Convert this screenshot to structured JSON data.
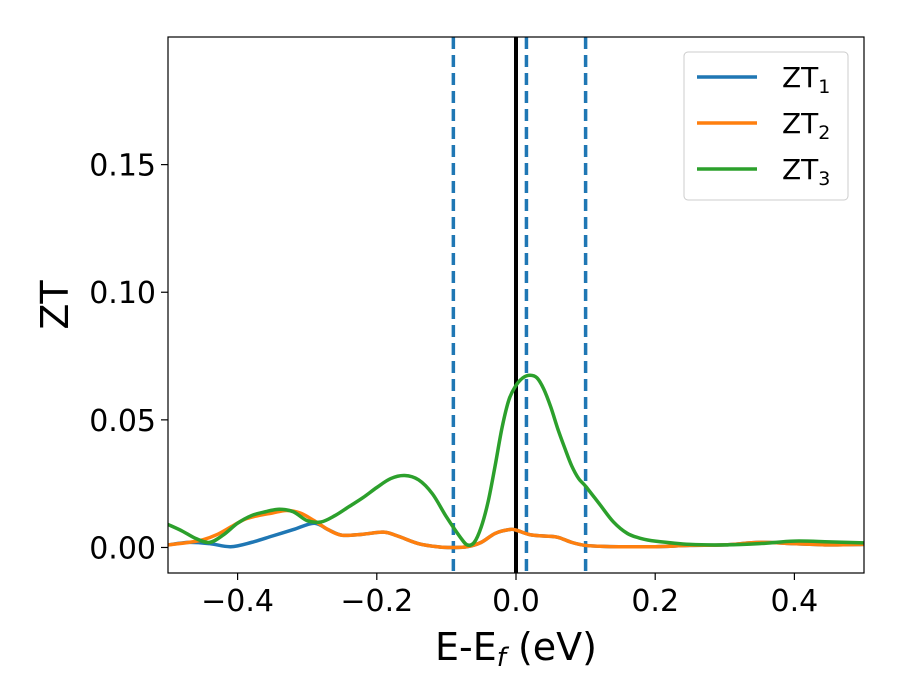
{
  "chart_data": {
    "type": "line",
    "xlabel_main": "E-E",
    "xlabel_sub": "f",
    "xlabel_unit": " (eV)",
    "ylabel": "ZT",
    "xlim": [
      -0.5,
      0.5
    ],
    "ylim": [
      -0.01,
      0.2
    ],
    "x_ticks": [
      -0.4,
      -0.2,
      0.0,
      0.2,
      0.4
    ],
    "x_tick_labels": [
      "−0.4",
      "−0.2",
      "0.0",
      "0.2",
      "0.4"
    ],
    "y_ticks": [
      0.0,
      0.05,
      0.1,
      0.15
    ],
    "y_tick_labels": [
      "0.00",
      "0.05",
      "0.10",
      "0.15"
    ],
    "grid": false,
    "legend_position": "top-right",
    "series": [
      {
        "name": "ZT",
        "sub": "1",
        "color": "#1f77b4",
        "x": [
          -0.5,
          -0.47,
          -0.44,
          -0.41,
          -0.38,
          -0.35,
          -0.32,
          -0.29,
          -0.27,
          -0.25,
          -0.22,
          -0.19,
          -0.17,
          -0.14,
          -0.11,
          -0.09,
          -0.07,
          -0.05,
          -0.03,
          -0.01,
          0.0,
          0.02,
          0.04,
          0.06,
          0.08,
          0.1,
          0.13,
          0.16,
          0.2,
          0.25,
          0.3,
          0.35,
          0.4,
          0.45,
          0.5
        ],
        "y": [
          0.001,
          0.002,
          0.0015,
          0.0003,
          0.002,
          0.0045,
          0.007,
          0.0095,
          0.007,
          0.0048,
          0.0052,
          0.006,
          0.0045,
          0.0015,
          0.0002,
          0.0,
          0.0003,
          0.002,
          0.0055,
          0.007,
          0.0068,
          0.005,
          0.0045,
          0.004,
          0.002,
          0.0008,
          0.0004,
          0.0003,
          0.0003,
          0.0008,
          0.001,
          0.002,
          0.0015,
          0.001,
          0.0012
        ]
      },
      {
        "name": "ZT",
        "sub": "2",
        "color": "#ff7f0e",
        "x": [
          -0.5,
          -0.47,
          -0.45,
          -0.43,
          -0.41,
          -0.39,
          -0.37,
          -0.35,
          -0.33,
          -0.31,
          -0.29,
          -0.27,
          -0.25,
          -0.22,
          -0.19,
          -0.17,
          -0.14,
          -0.11,
          -0.09,
          -0.07,
          -0.05,
          -0.03,
          -0.01,
          0.0,
          0.02,
          0.04,
          0.06,
          0.08,
          0.1,
          0.13,
          0.16,
          0.2,
          0.25,
          0.3,
          0.35,
          0.4,
          0.45,
          0.5
        ],
        "y": [
          0.001,
          0.002,
          0.003,
          0.005,
          0.008,
          0.011,
          0.0125,
          0.0135,
          0.0145,
          0.0135,
          0.0105,
          0.007,
          0.0048,
          0.0052,
          0.006,
          0.0045,
          0.0015,
          0.0002,
          0.0,
          0.0003,
          0.002,
          0.0055,
          0.007,
          0.0068,
          0.005,
          0.0045,
          0.004,
          0.002,
          0.0008,
          0.0004,
          0.0003,
          0.0003,
          0.0008,
          0.001,
          0.002,
          0.0015,
          0.001,
          0.0012
        ]
      },
      {
        "name": "ZT",
        "sub": "3",
        "color": "#2ca02c",
        "x": [
          -0.5,
          -0.48,
          -0.46,
          -0.44,
          -0.42,
          -0.4,
          -0.38,
          -0.36,
          -0.34,
          -0.32,
          -0.3,
          -0.28,
          -0.26,
          -0.24,
          -0.22,
          -0.2,
          -0.18,
          -0.16,
          -0.14,
          -0.12,
          -0.1,
          -0.08,
          -0.07,
          -0.06,
          -0.05,
          -0.04,
          -0.03,
          -0.02,
          -0.01,
          0.0,
          0.01,
          0.02,
          0.03,
          0.04,
          0.05,
          0.06,
          0.07,
          0.08,
          0.09,
          0.1,
          0.12,
          0.14,
          0.16,
          0.18,
          0.2,
          0.25,
          0.3,
          0.35,
          0.4,
          0.45,
          0.5
        ],
        "y": [
          0.009,
          0.0065,
          0.0035,
          0.002,
          0.005,
          0.0095,
          0.0125,
          0.014,
          0.015,
          0.014,
          0.0105,
          0.01,
          0.0125,
          0.016,
          0.0195,
          0.0235,
          0.027,
          0.0282,
          0.0265,
          0.021,
          0.012,
          0.004,
          0.001,
          0.002,
          0.008,
          0.018,
          0.032,
          0.047,
          0.058,
          0.0635,
          0.0665,
          0.0675,
          0.0665,
          0.062,
          0.055,
          0.0465,
          0.039,
          0.032,
          0.027,
          0.024,
          0.017,
          0.01,
          0.0055,
          0.0035,
          0.0025,
          0.0012,
          0.001,
          0.0015,
          0.0025,
          0.0022,
          0.0018
        ]
      }
    ],
    "vlines": [
      {
        "x": -0.09,
        "style": "dashed",
        "color": "#1f77b4"
      },
      {
        "x": 0.0,
        "style": "solid",
        "color": "#000000"
      },
      {
        "x": 0.015,
        "style": "dashed",
        "color": "#1f77b4"
      },
      {
        "x": 0.1,
        "style": "dashed",
        "color": "#1f77b4"
      }
    ]
  }
}
